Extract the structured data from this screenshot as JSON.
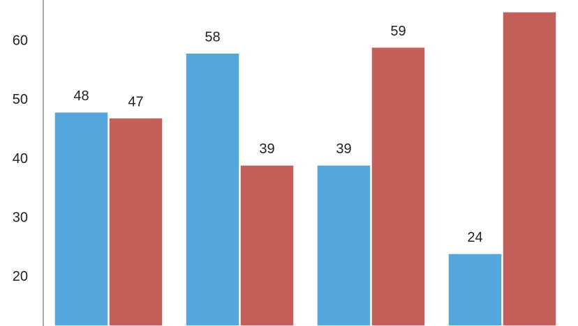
{
  "chart_data": {
    "type": "bar",
    "categories": [
      null,
      null,
      null,
      null
    ],
    "series": [
      {
        "color": "#55a6dc",
        "values": [
          48,
          58,
          39,
          24
        ]
      },
      {
        "color": "#c55f5a",
        "values": [
          47,
          39,
          59,
          65
        ]
      }
    ],
    "ylim": [
      11.7,
      67
    ],
    "yticks": [
      20,
      30,
      40,
      50,
      60
    ],
    "grid": false
  }
}
